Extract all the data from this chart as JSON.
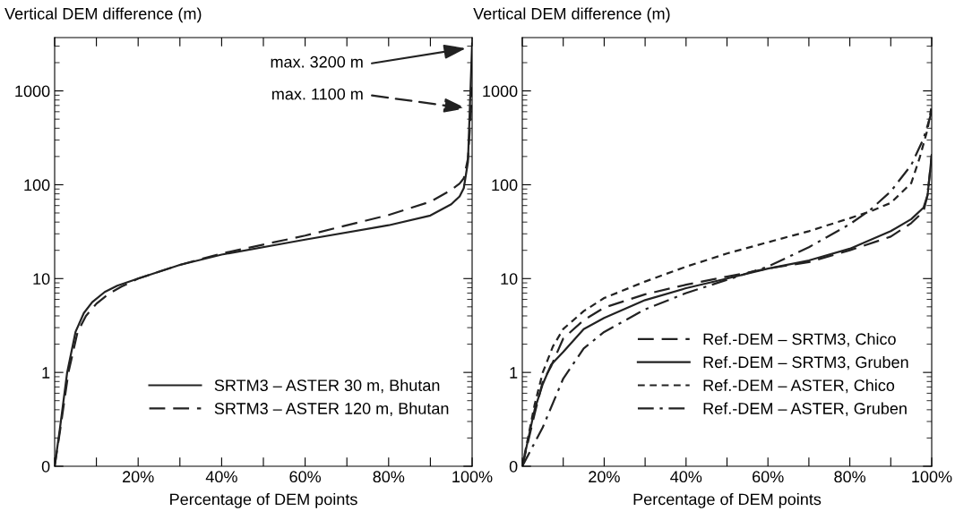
{
  "chart_data": [
    {
      "type": "line",
      "ylabel": "Vertical DEM difference (m)",
      "xlabel": "Percentage of DEM points",
      "log": "y",
      "grid": false,
      "legend": "lower right",
      "marker": "none",
      "xlim": [
        0,
        100
      ],
      "xticks": [
        {
          "value": 0,
          "label": null
        },
        {
          "value": 10,
          "label": null
        },
        {
          "value": 20,
          "label": "20%"
        },
        {
          "value": 30,
          "label": null
        },
        {
          "value": 40,
          "label": "40%"
        },
        {
          "value": 50,
          "label": null
        },
        {
          "value": 60,
          "label": "60%"
        },
        {
          "value": 70,
          "label": null
        },
        {
          "value": 80,
          "label": "80%"
        },
        {
          "value": 90,
          "label": null
        },
        {
          "value": 100,
          "label": "100%"
        }
      ],
      "ylim": [
        0.1,
        3700
      ],
      "yticks": [
        {
          "value": 0.1,
          "label": "0"
        },
        1,
        10,
        100,
        1000
      ],
      "annotations": [
        "max. 3200 m",
        "max. 1100 m"
      ],
      "series": [
        {
          "name": "SRTM3 – ASTER 30 m, Bhutan",
          "color": "#222222",
          "line_style": "solid",
          "x": [
            0,
            1.2,
            3,
            5,
            7,
            9,
            12,
            15,
            20,
            30,
            40,
            60,
            80,
            90,
            95,
            97,
            98,
            99,
            99.5,
            100
          ],
          "values": [
            0.1,
            0.24,
            1,
            2.7,
            4.3,
            5.6,
            7.2,
            8.4,
            10,
            14,
            18,
            26,
            37,
            47,
            62,
            75,
            92,
            175,
            750,
            3200
          ]
        },
        {
          "name": "SRTM3 – ASTER 120 m, Bhutan",
          "color": "#222222",
          "line_style": "dashed",
          "x": [
            0,
            1.3,
            3.3,
            5.5,
            7.5,
            10,
            13,
            16,
            20,
            30,
            40,
            60,
            80,
            90,
            95,
            97,
            98,
            99,
            99.6,
            100
          ],
          "values": [
            0.1,
            0.24,
            1,
            2.7,
            4,
            5.4,
            6.9,
            8.2,
            10,
            14,
            18.5,
            28.7,
            47.6,
            66,
            88,
            103,
            117,
            190,
            500,
            1100
          ]
        }
      ]
    },
    {
      "type": "line",
      "ylabel": "Vertical DEM difference (m)",
      "xlabel": "Percentage of DEM points",
      "log": "y",
      "grid": false,
      "legend": "lower right",
      "marker": "none",
      "xlim": [
        0,
        100
      ],
      "xticks": [
        {
          "value": 0,
          "label": null
        },
        {
          "value": 10,
          "label": null
        },
        {
          "value": 20,
          "label": "20%"
        },
        {
          "value": 30,
          "label": null
        },
        {
          "value": 40,
          "label": "40%"
        },
        {
          "value": 50,
          "label": null
        },
        {
          "value": 60,
          "label": "60%"
        },
        {
          "value": 70,
          "label": null
        },
        {
          "value": 80,
          "label": "80%"
        },
        {
          "value": 90,
          "label": null
        },
        {
          "value": 100,
          "label": "100%"
        }
      ],
      "ylim": [
        0.1,
        3700
      ],
      "yticks": [
        {
          "value": 0.1,
          "label": "0"
        },
        1,
        10,
        100,
        1000
      ],
      "series": [
        {
          "name": "Ref.-DEM – SRTM3, Chico",
          "color": "#222222",
          "line_style": "dashed",
          "x": [
            0,
            3,
            5,
            7,
            10,
            15,
            20,
            30,
            40,
            50,
            60,
            70,
            80,
            90,
            95,
            98,
            99,
            100
          ],
          "values": [
            0.1,
            0.36,
            0.8,
            1.15,
            2.3,
            3.6,
            4.9,
            6.8,
            8.6,
            10.5,
            12.8,
            15,
            20,
            28,
            39,
            52,
            78,
            207
          ]
        },
        {
          "name": "Ref.-DEM – SRTM3, Gruben",
          "color": "#222222",
          "line_style": "solid",
          "x": [
            0,
            3,
            5,
            7,
            10,
            15,
            20,
            30,
            40,
            50,
            60,
            70,
            80,
            90,
            95,
            98,
            99,
            100
          ],
          "values": [
            0.1,
            0.4,
            0.75,
            1.2,
            1.65,
            2.9,
            3.8,
            5.9,
            7.9,
            10,
            12.8,
            15.6,
            20.8,
            32,
            43,
            57,
            78,
            207
          ]
        },
        {
          "name": "Ref.-DEM – ASTER, Chico",
          "color": "#222222",
          "line_style": "dotted",
          "x": [
            0,
            3,
            5,
            7.5,
            10,
            15,
            20,
            30,
            40,
            50,
            60,
            70,
            80,
            85,
            90,
            95,
            97,
            99,
            100
          ],
          "values": [
            0.1,
            0.45,
            1,
            1.9,
            2.9,
            4.5,
            6.2,
            9.3,
            13.4,
            18.5,
            24.4,
            32,
            44,
            52,
            64,
            104,
            190,
            390,
            700
          ]
        },
        {
          "name": "Ref.-DEM – ASTER, Gruben",
          "color": "#222222",
          "line_style": "dashdot",
          "x": [
            0,
            5,
            10,
            15,
            20,
            30,
            40,
            50,
            60,
            70,
            80,
            85,
            90,
            95,
            98,
            100
          ],
          "values": [
            0.1,
            0.26,
            0.86,
            1.8,
            2.7,
            4.7,
            7,
            9.7,
            13.4,
            21.6,
            38,
            54,
            85,
            162,
            310,
            600
          ]
        }
      ]
    }
  ]
}
